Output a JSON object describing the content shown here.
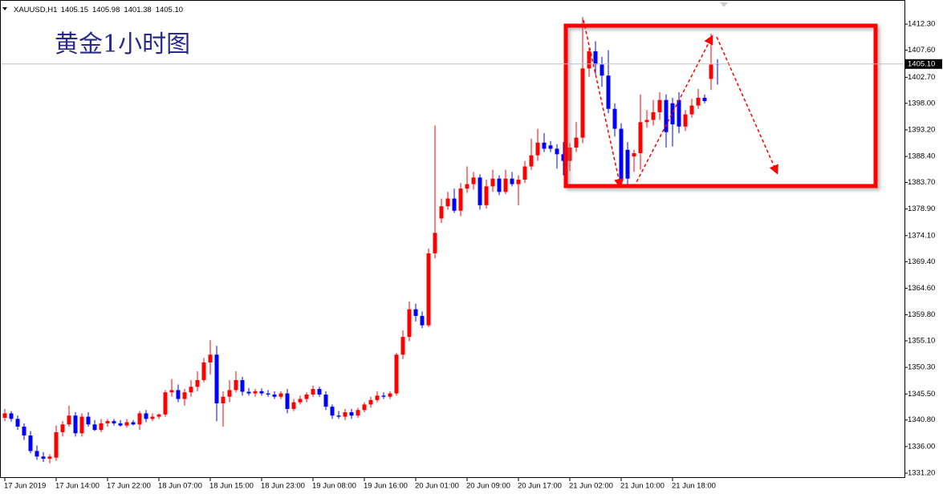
{
  "chart_data": {
    "type": "candlestick",
    "title": "黄金1小时图",
    "symbol": "XAUUSD,H1",
    "header_ohlc": [
      "1405.15",
      "1405.98",
      "1401.38",
      "1405.10"
    ],
    "last_price": {
      "value": 1405.1,
      "label": "1405.10"
    },
    "up_color": "#ff0000",
    "down_color": "#0000ff",
    "categories": [
      "17 Jun 2019",
      null,
      null,
      null,
      null,
      null,
      null,
      null,
      "17 Jun 14:00",
      null,
      null,
      null,
      null,
      null,
      null,
      null,
      "17 Jun 22:00",
      null,
      null,
      null,
      null,
      null,
      null,
      null,
      "18 Jun 07:00",
      null,
      null,
      null,
      null,
      null,
      null,
      null,
      "18 Jun 15:00",
      null,
      null,
      null,
      null,
      null,
      null,
      null,
      "18 Jun 23:00",
      null,
      null,
      null,
      null,
      null,
      null,
      null,
      "19 Jun 08:00",
      null,
      null,
      null,
      null,
      null,
      null,
      null,
      "19 Jun 16:00",
      null,
      null,
      null,
      null,
      null,
      null,
      null,
      "20 Jun 01:00",
      null,
      null,
      null,
      null,
      null,
      null,
      null,
      "20 Jun 09:00",
      null,
      null,
      null,
      null,
      null,
      null,
      null,
      "20 Jun 17:00",
      null,
      null,
      null,
      null,
      null,
      null,
      null,
      "21 Jun 02:00",
      null,
      null,
      null,
      null,
      null,
      null,
      null,
      "21 Jun 10:00",
      null,
      null,
      null,
      null,
      null,
      null,
      null,
      "21 Jun 18:00",
      null,
      null,
      null,
      null,
      null,
      null,
      null
    ],
    "open": [
      1341.2,
      1342.0,
      1341.0,
      1339.6,
      1338.0,
      1335.2,
      1334.2,
      1333.8,
      1334.0,
      1338.6,
      1340.0,
      1341.6,
      1338.4,
      1341.4,
      1340.0,
      1339.0,
      1340.2,
      1340.6,
      1340.2,
      1339.8,
      1340.4,
      1340.0,
      1342.0,
      1341.0,
      1341.4,
      1341.8,
      1345.8,
      1346.2,
      1344.6,
      1345.8,
      1346.8,
      1348.0,
      1351.2,
      1352.6,
      1343.8,
      1345.0,
      1346.2,
      1348.0,
      1345.9,
      1345.6,
      1346.0,
      1345.6,
      1345.4,
      1345.0,
      1345.6,
      1342.8,
      1344.0,
      1344.6,
      1345.4,
      1346.4,
      1345.4,
      1343.2,
      1341.6,
      1341.4,
      1342.2,
      1341.6,
      1342.6,
      1343.6,
      1344.4,
      1345.2,
      1345.0,
      1345.6,
      1352.6,
      1355.8,
      1360.8,
      1359.6,
      1357.9,
      1370.9,
      1377.2,
      1379.4,
      1380.8,
      1378.6,
      1382.6,
      1383.4,
      1384.6,
      1379.6,
      1383.0,
      1384.4,
      1382.0,
      1384.4,
      1383.4,
      1384.2,
      1386.6,
      1388.6,
      1390.9,
      1390.4,
      1389.8,
      1388.8,
      1387.6,
      1390.0,
      1391.8,
      1404.3,
      1407.4,
      1405.0,
      1403.0,
      1397.0,
      1393.4,
      1389.6,
      1388.4,
      1389.0,
      1394.6,
      1395.0,
      1396.4,
      1398.6,
      1398.0,
      1398.6,
      1393.8,
      1396.0,
      1397.6,
      1399.0,
      1402.4,
      1405.15
    ],
    "high": [
      1342.8,
      1342.4,
      1341.6,
      1340.2,
      1338.8,
      1336.2,
      1335.0,
      1334.6,
      1339.8,
      1340.6,
      1343.4,
      1342.2,
      1342.0,
      1342.2,
      1340.8,
      1341.0,
      1341.0,
      1341.0,
      1340.8,
      1341.0,
      1340.8,
      1342.4,
      1342.6,
      1342.0,
      1342.0,
      1346.2,
      1348.2,
      1347.2,
      1346.4,
      1348.0,
      1349.6,
      1352.0,
      1355.2,
      1354.2,
      1346.0,
      1348.0,
      1349.6,
      1348.6,
      1346.6,
      1346.4,
      1346.5,
      1346.2,
      1346.0,
      1346.0,
      1346.4,
      1344.6,
      1345.2,
      1345.8,
      1347.0,
      1346.8,
      1346.0,
      1343.6,
      1342.4,
      1342.8,
      1342.8,
      1343.0,
      1344.0,
      1345.0,
      1346.0,
      1345.8,
      1346.0,
      1352.9,
      1357.0,
      1362.2,
      1361.8,
      1360.4,
      1371.8,
      1394.0,
      1380.8,
      1382.0,
      1382.6,
      1383.6,
      1386.6,
      1385.6,
      1385.2,
      1384.2,
      1386.0,
      1385.0,
      1386.0,
      1385.6,
      1385.0,
      1387.6,
      1391.6,
      1393.4,
      1392.6,
      1391.2,
      1390.6,
      1391.0,
      1390.8,
      1394.6,
      1413.6,
      1408.0,
      1409.2,
      1406.4,
      1407.6,
      1398.0,
      1394.4,
      1391.0,
      1389.6,
      1399.6,
      1396.8,
      1398.6,
      1400.0,
      1399.6,
      1399.0,
      1400.0,
      1396.8,
      1398.8,
      1400.6,
      1399.6,
      1410.6,
      1405.98
    ],
    "low": [
      1340.6,
      1340.5,
      1339.0,
      1337.2,
      1334.8,
      1333.6,
      1333.2,
      1333.0,
      1333.4,
      1337.8,
      1339.6,
      1337.8,
      1337.8,
      1339.6,
      1338.8,
      1338.6,
      1339.6,
      1339.8,
      1339.6,
      1339.4,
      1339.8,
      1339.0,
      1340.4,
      1340.6,
      1341.0,
      1341.4,
      1345.0,
      1344.0,
      1343.4,
      1345.0,
      1346.0,
      1347.6,
      1349.0,
      1340.6,
      1339.6,
      1344.0,
      1345.8,
      1345.2,
      1345.2,
      1345.0,
      1345.2,
      1345.0,
      1344.6,
      1344.6,
      1342.0,
      1342.4,
      1343.6,
      1344.0,
      1345.0,
      1345.0,
      1342.6,
      1341.0,
      1341.0,
      1340.8,
      1341.0,
      1341.2,
      1342.2,
      1343.0,
      1344.0,
      1344.6,
      1344.6,
      1345.2,
      1351.8,
      1355.0,
      1358.6,
      1357.4,
      1357.6,
      1370.0,
      1376.4,
      1378.8,
      1378.2,
      1377.6,
      1381.8,
      1382.4,
      1378.8,
      1379.0,
      1382.0,
      1381.4,
      1381.6,
      1383.0,
      1379.6,
      1383.6,
      1386.0,
      1387.6,
      1389.2,
      1389.2,
      1386.2,
      1385.0,
      1385.8,
      1389.2,
      1390.8,
      1402.8,
      1403.2,
      1401.0,
      1396.2,
      1392.0,
      1383.0,
      1383.2,
      1385.6,
      1386.0,
      1393.6,
      1394.0,
      1395.0,
      1390.0,
      1390.2,
      1392.6,
      1393.0,
      1395.4,
      1397.0,
      1398.0,
      1400.4,
      1401.38
    ],
    "close": [
      1342.0,
      1341.0,
      1339.6,
      1338.0,
      1335.2,
      1334.2,
      1333.8,
      1334.2,
      1338.6,
      1340.0,
      1341.6,
      1338.4,
      1341.4,
      1340.0,
      1339.0,
      1340.2,
      1340.6,
      1340.2,
      1339.8,
      1340.4,
      1340.0,
      1342.0,
      1341.0,
      1341.4,
      1341.8,
      1345.8,
      1346.2,
      1344.6,
      1345.8,
      1346.8,
      1348.0,
      1351.2,
      1352.6,
      1343.8,
      1345.0,
      1346.2,
      1348.0,
      1345.9,
      1345.6,
      1346.0,
      1345.6,
      1345.4,
      1345.0,
      1345.6,
      1342.8,
      1344.0,
      1344.6,
      1345.4,
      1346.4,
      1345.4,
      1343.2,
      1341.6,
      1341.4,
      1342.2,
      1341.6,
      1342.6,
      1343.6,
      1344.4,
      1345.2,
      1345.0,
      1345.6,
      1352.6,
      1355.8,
      1360.8,
      1359.6,
      1357.9,
      1370.9,
      1374.6,
      1379.4,
      1380.8,
      1378.6,
      1382.6,
      1383.4,
      1384.6,
      1379.6,
      1383.0,
      1384.4,
      1382.0,
      1384.4,
      1383.4,
      1384.2,
      1386.6,
      1388.6,
      1390.9,
      1389.8,
      1389.8,
      1388.8,
      1387.6,
      1390.0,
      1391.8,
      1404.3,
      1407.4,
      1405.0,
      1403.0,
      1397.0,
      1393.4,
      1384.0,
      1384.4,
      1389.0,
      1394.6,
      1395.0,
      1396.4,
      1398.6,
      1392.8,
      1394.2,
      1393.8,
      1396.0,
      1397.6,
      1399.0,
      1398.4,
      1405.0,
      1405.1
    ],
    "ylim": [
      1330.33,
      1416.66
    ],
    "yticks": [
      {
        "value": 1412.3,
        "label": "1412.30"
      },
      {
        "value": 1407.6,
        "label": "1407.60"
      },
      {
        "value": 1402.7,
        "label": "1402.70"
      },
      {
        "value": 1398,
        "label": "1398.00"
      },
      {
        "value": 1393.2,
        "label": "1393.20"
      },
      {
        "value": 1388.4,
        "label": "1388.40"
      },
      {
        "value": 1383.7,
        "label": "1383.70"
      },
      {
        "value": 1378.9,
        "label": "1378.90"
      },
      {
        "value": 1374.1,
        "label": "1374.10"
      },
      {
        "value": 1369.4,
        "label": "1369.40"
      },
      {
        "value": 1364.6,
        "label": "1364.60"
      },
      {
        "value": 1359.8,
        "label": "1359.80"
      },
      {
        "value": 1355.1,
        "label": "1355.10"
      },
      {
        "value": 1350.3,
        "label": "1350.30"
      },
      {
        "value": 1345.5,
        "label": "1345.50"
      },
      {
        "value": 1340.8,
        "label": "1340.80"
      },
      {
        "value": 1336,
        "label": "1336.00"
      },
      {
        "value": 1331.2,
        "label": "1331.20"
      }
    ]
  }
}
